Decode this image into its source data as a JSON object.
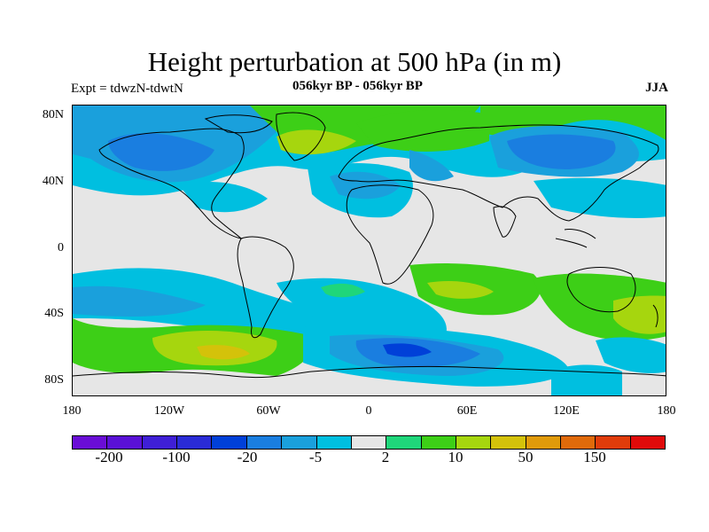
{
  "title": "Height perturbation at 500 hPa (in m)",
  "subtitle": "056kyr BP - 056kyr BP",
  "expt_label": "Expt = tdwzN-tdwtN",
  "season": "JJA",
  "lat_labels": [
    "80N",
    "40N",
    "0",
    "40S",
    "80S"
  ],
  "lon_labels": [
    "180",
    "120W",
    "60W",
    "0",
    "60E",
    "120E",
    "180"
  ],
  "colorbar": {
    "colors": [
      "#6a0dd6",
      "#5a10d6",
      "#3f1fd6",
      "#2a2bd6",
      "#0040d8",
      "#1a7ee0",
      "#1aa0dc",
      "#00bfe0",
      "#e6e6e6",
      "#1fd67a",
      "#3dcf17",
      "#a6d60e",
      "#d4c20a",
      "#e09a0a",
      "#e06a0a",
      "#e03c0a",
      "#e00a0a"
    ],
    "labels": [
      "-200",
      "-100",
      "-20",
      "-5",
      "2",
      "10",
      "50",
      "150"
    ]
  }
}
